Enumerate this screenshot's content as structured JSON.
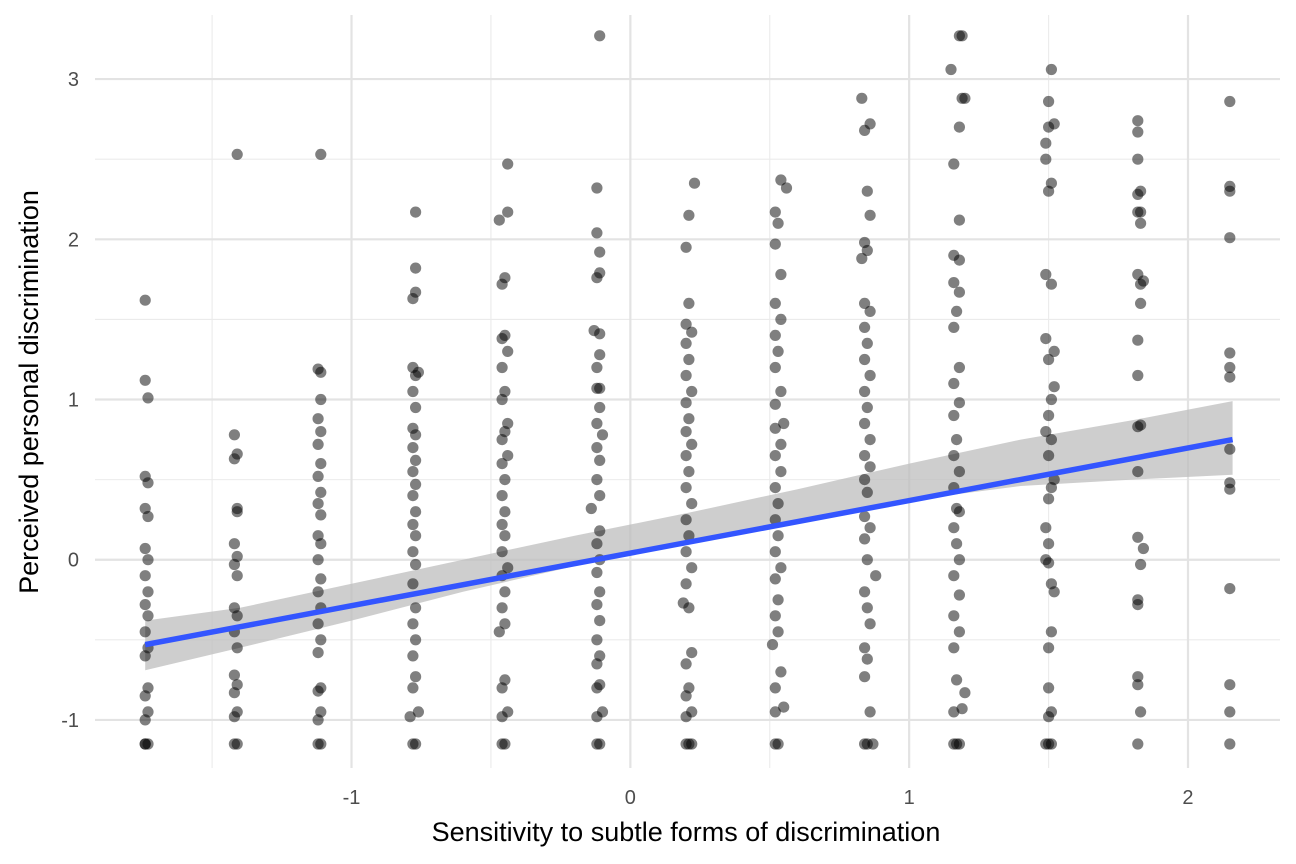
{
  "chart_data": {
    "type": "scatter",
    "title": "",
    "xlabel": "Sensitivity to subtle forms of discrimination",
    "ylabel": "Perceived personal discrimination",
    "xlim": [
      -1.92,
      2.33
    ],
    "ylim": [
      -1.3,
      3.4
    ],
    "x_major_ticks": [
      -1,
      0,
      1,
      2
    ],
    "x_minor_ticks": [
      -1.5,
      -0.5,
      0.5,
      1.5
    ],
    "y_major_ticks": [
      -1,
      0,
      1,
      2,
      3
    ],
    "y_minor_ticks": [
      -0.5,
      0.5,
      1.5,
      2.5
    ],
    "grid": true,
    "legend": "none",
    "point_color": "#000000",
    "point_alpha": 0.5,
    "trend_color": "#3355ff",
    "band_color": "#bebebe",
    "trend_line": {
      "type": "linear",
      "x": [
        -1.74,
        2.16
      ],
      "y": [
        -0.53,
        0.75
      ]
    },
    "confidence_band": {
      "x": [
        -1.74,
        -1.4,
        -1.0,
        -0.6,
        -0.2,
        0.2,
        0.6,
        1.0,
        1.4,
        1.8,
        2.16
      ],
      "upper": [
        -0.38,
        -0.3,
        -0.15,
        0.0,
        0.15,
        0.29,
        0.44,
        0.6,
        0.75,
        0.87,
        0.99
      ],
      "lower": [
        -0.69,
        -0.55,
        -0.38,
        -0.2,
        -0.04,
        0.12,
        0.25,
        0.37,
        0.46,
        0.5,
        0.53
      ]
    },
    "points": [
      [
        -1.74,
        -1.15
      ],
      [
        -1.74,
        -1.15
      ],
      [
        -1.73,
        -1.15
      ],
      [
        -1.74,
        -1.0
      ],
      [
        -1.73,
        -0.95
      ],
      [
        -1.74,
        -0.85
      ],
      [
        -1.73,
        -0.8
      ],
      [
        -1.74,
        -0.6
      ],
      [
        -1.73,
        -0.55
      ],
      [
        -1.74,
        -0.45
      ],
      [
        -1.73,
        -0.35
      ],
      [
        -1.74,
        -0.28
      ],
      [
        -1.73,
        -0.2
      ],
      [
        -1.74,
        -0.1
      ],
      [
        -1.73,
        0.0
      ],
      [
        -1.74,
        0.07
      ],
      [
        -1.73,
        0.27
      ],
      [
        -1.74,
        0.32
      ],
      [
        -1.73,
        0.48
      ],
      [
        -1.74,
        0.52
      ],
      [
        -1.73,
        1.01
      ],
      [
        -1.74,
        1.12
      ],
      [
        -1.74,
        1.62
      ],
      [
        -1.42,
        -1.15
      ],
      [
        -1.41,
        -1.15
      ],
      [
        -1.42,
        -0.98
      ],
      [
        -1.41,
        -0.95
      ],
      [
        -1.42,
        -0.83
      ],
      [
        -1.41,
        -0.78
      ],
      [
        -1.42,
        -0.72
      ],
      [
        -1.41,
        -0.55
      ],
      [
        -1.42,
        -0.45
      ],
      [
        -1.41,
        -0.35
      ],
      [
        -1.42,
        -0.3
      ],
      [
        -1.41,
        -0.1
      ],
      [
        -1.42,
        -0.03
      ],
      [
        -1.41,
        0.02
      ],
      [
        -1.42,
        0.1
      ],
      [
        -1.41,
        0.3
      ],
      [
        -1.41,
        0.32
      ],
      [
        -1.42,
        0.63
      ],
      [
        -1.41,
        0.66
      ],
      [
        -1.42,
        0.78
      ],
      [
        -1.41,
        2.53
      ],
      [
        -1.12,
        -1.15
      ],
      [
        -1.11,
        -1.15
      ],
      [
        -1.12,
        -1.0
      ],
      [
        -1.11,
        -0.95
      ],
      [
        -1.12,
        -0.82
      ],
      [
        -1.11,
        -0.8
      ],
      [
        -1.12,
        -0.58
      ],
      [
        -1.11,
        -0.5
      ],
      [
        -1.12,
        -0.4
      ],
      [
        -1.11,
        -0.3
      ],
      [
        -1.12,
        -0.2
      ],
      [
        -1.11,
        -0.12
      ],
      [
        -1.12,
        0.0
      ],
      [
        -1.11,
        0.1
      ],
      [
        -1.12,
        0.15
      ],
      [
        -1.11,
        0.28
      ],
      [
        -1.12,
        0.35
      ],
      [
        -1.11,
        0.42
      ],
      [
        -1.12,
        0.52
      ],
      [
        -1.11,
        0.6
      ],
      [
        -1.12,
        0.72
      ],
      [
        -1.11,
        0.8
      ],
      [
        -1.12,
        0.88
      ],
      [
        -1.11,
        1.0
      ],
      [
        -1.12,
        1.19
      ],
      [
        -1.11,
        1.17
      ],
      [
        -1.11,
        2.53
      ],
      [
        -0.78,
        -1.15
      ],
      [
        -0.77,
        -1.15
      ],
      [
        -0.79,
        -0.98
      ],
      [
        -0.76,
        -0.95
      ],
      [
        -0.78,
        -0.8
      ],
      [
        -0.77,
        -0.73
      ],
      [
        -0.78,
        -0.6
      ],
      [
        -0.77,
        -0.5
      ],
      [
        -0.78,
        -0.4
      ],
      [
        -0.77,
        -0.3
      ],
      [
        -0.78,
        -0.15
      ],
      [
        -0.77,
        -0.03
      ],
      [
        -0.78,
        0.05
      ],
      [
        -0.77,
        0.15
      ],
      [
        -0.78,
        0.22
      ],
      [
        -0.77,
        0.3
      ],
      [
        -0.78,
        0.4
      ],
      [
        -0.77,
        0.47
      ],
      [
        -0.78,
        0.55
      ],
      [
        -0.77,
        0.62
      ],
      [
        -0.78,
        0.7
      ],
      [
        -0.77,
        0.78
      ],
      [
        -0.78,
        0.82
      ],
      [
        -0.77,
        0.95
      ],
      [
        -0.78,
        1.05
      ],
      [
        -0.77,
        1.15
      ],
      [
        -0.78,
        1.2
      ],
      [
        -0.76,
        1.17
      ],
      [
        -0.78,
        1.63
      ],
      [
        -0.77,
        1.67
      ],
      [
        -0.77,
        1.82
      ],
      [
        -0.77,
        2.17
      ],
      [
        -0.46,
        -1.15
      ],
      [
        -0.45,
        -1.15
      ],
      [
        -0.46,
        -0.98
      ],
      [
        -0.44,
        -0.95
      ],
      [
        -0.46,
        -0.8
      ],
      [
        -0.45,
        -0.75
      ],
      [
        -0.47,
        -0.45
      ],
      [
        -0.45,
        -0.4
      ],
      [
        -0.46,
        -0.3
      ],
      [
        -0.45,
        -0.2
      ],
      [
        -0.46,
        -0.1
      ],
      [
        -0.44,
        -0.05
      ],
      [
        -0.46,
        0.05
      ],
      [
        -0.45,
        0.15
      ],
      [
        -0.46,
        0.22
      ],
      [
        -0.45,
        0.3
      ],
      [
        -0.46,
        0.4
      ],
      [
        -0.45,
        0.5
      ],
      [
        -0.46,
        0.6
      ],
      [
        -0.44,
        0.65
      ],
      [
        -0.46,
        0.75
      ],
      [
        -0.45,
        0.8
      ],
      [
        -0.44,
        0.85
      ],
      [
        -0.46,
        1.0
      ],
      [
        -0.45,
        1.05
      ],
      [
        -0.46,
        1.2
      ],
      [
        -0.44,
        1.3
      ],
      [
        -0.46,
        1.38
      ],
      [
        -0.45,
        1.4
      ],
      [
        -0.46,
        1.72
      ],
      [
        -0.45,
        1.76
      ],
      [
        -0.47,
        2.12
      ],
      [
        -0.44,
        2.17
      ],
      [
        -0.44,
        2.47
      ],
      [
        -0.12,
        -1.15
      ],
      [
        -0.11,
        -1.15
      ],
      [
        -0.12,
        -0.98
      ],
      [
        -0.1,
        -0.95
      ],
      [
        -0.12,
        -0.8
      ],
      [
        -0.11,
        -0.78
      ],
      [
        -0.12,
        -0.65
      ],
      [
        -0.11,
        -0.6
      ],
      [
        -0.12,
        -0.5
      ],
      [
        -0.11,
        -0.38
      ],
      [
        -0.12,
        -0.28
      ],
      [
        -0.11,
        -0.2
      ],
      [
        -0.12,
        -0.08
      ],
      [
        -0.11,
        0.0
      ],
      [
        -0.12,
        0.1
      ],
      [
        -0.11,
        0.18
      ],
      [
        -0.14,
        0.32
      ],
      [
        -0.11,
        0.4
      ],
      [
        -0.12,
        0.5
      ],
      [
        -0.11,
        0.62
      ],
      [
        -0.12,
        0.7
      ],
      [
        -0.1,
        0.78
      ],
      [
        -0.12,
        0.85
      ],
      [
        -0.11,
        0.95
      ],
      [
        -0.12,
        1.07
      ],
      [
        -0.11,
        1.07
      ],
      [
        -0.12,
        1.2
      ],
      [
        -0.11,
        1.28
      ],
      [
        -0.13,
        1.43
      ],
      [
        -0.11,
        1.41
      ],
      [
        -0.12,
        1.76
      ],
      [
        -0.11,
        1.79
      ],
      [
        -0.11,
        1.92
      ],
      [
        -0.12,
        2.04
      ],
      [
        -0.12,
        2.32
      ],
      [
        -0.11,
        3.27
      ],
      [
        0.2,
        -1.15
      ],
      [
        0.21,
        -1.15
      ],
      [
        0.22,
        -1.15
      ],
      [
        0.2,
        -0.98
      ],
      [
        0.22,
        -0.95
      ],
      [
        0.2,
        -0.85
      ],
      [
        0.21,
        -0.8
      ],
      [
        0.2,
        -0.65
      ],
      [
        0.22,
        -0.58
      ],
      [
        0.19,
        -0.27
      ],
      [
        0.21,
        -0.3
      ],
      [
        0.2,
        -0.15
      ],
      [
        0.22,
        -0.05
      ],
      [
        0.2,
        0.05
      ],
      [
        0.21,
        0.15
      ],
      [
        0.2,
        0.25
      ],
      [
        0.22,
        0.35
      ],
      [
        0.2,
        0.45
      ],
      [
        0.21,
        0.55
      ],
      [
        0.2,
        0.65
      ],
      [
        0.22,
        0.72
      ],
      [
        0.2,
        0.8
      ],
      [
        0.21,
        0.88
      ],
      [
        0.2,
        0.98
      ],
      [
        0.22,
        1.05
      ],
      [
        0.2,
        1.15
      ],
      [
        0.21,
        1.25
      ],
      [
        0.2,
        1.35
      ],
      [
        0.22,
        1.42
      ],
      [
        0.2,
        1.47
      ],
      [
        0.21,
        1.6
      ],
      [
        0.2,
        1.95
      ],
      [
        0.21,
        2.15
      ],
      [
        0.23,
        2.35
      ],
      [
        0.52,
        -1.15
      ],
      [
        0.53,
        -1.15
      ],
      [
        0.52,
        -0.95
      ],
      [
        0.55,
        -0.92
      ],
      [
        0.52,
        -0.8
      ],
      [
        0.54,
        -0.7
      ],
      [
        0.51,
        -0.53
      ],
      [
        0.53,
        -0.45
      ],
      [
        0.52,
        -0.35
      ],
      [
        0.53,
        -0.25
      ],
      [
        0.52,
        -0.12
      ],
      [
        0.54,
        -0.05
      ],
      [
        0.52,
        0.05
      ],
      [
        0.53,
        0.15
      ],
      [
        0.52,
        0.25
      ],
      [
        0.53,
        0.35
      ],
      [
        0.52,
        0.45
      ],
      [
        0.54,
        0.55
      ],
      [
        0.52,
        0.65
      ],
      [
        0.54,
        0.72
      ],
      [
        0.52,
        0.82
      ],
      [
        0.55,
        0.85
      ],
      [
        0.52,
        0.97
      ],
      [
        0.54,
        1.05
      ],
      [
        0.52,
        1.2
      ],
      [
        0.53,
        1.3
      ],
      [
        0.52,
        1.4
      ],
      [
        0.54,
        1.5
      ],
      [
        0.52,
        1.6
      ],
      [
        0.54,
        1.78
      ],
      [
        0.52,
        1.97
      ],
      [
        0.53,
        2.1
      ],
      [
        0.52,
        2.17
      ],
      [
        0.56,
        2.32
      ],
      [
        0.54,
        2.37
      ],
      [
        0.84,
        -1.15
      ],
      [
        0.85,
        -1.15
      ],
      [
        0.87,
        -1.15
      ],
      [
        0.86,
        -0.95
      ],
      [
        0.84,
        -0.73
      ],
      [
        0.85,
        -0.62
      ],
      [
        0.84,
        -0.55
      ],
      [
        0.86,
        -0.4
      ],
      [
        0.85,
        -0.3
      ],
      [
        0.84,
        -0.2
      ],
      [
        0.88,
        -0.1
      ],
      [
        0.85,
        0.0
      ],
      [
        0.84,
        0.13
      ],
      [
        0.86,
        0.2
      ],
      [
        0.84,
        0.27
      ],
      [
        0.85,
        0.42
      ],
      [
        0.84,
        0.5
      ],
      [
        0.86,
        0.58
      ],
      [
        0.84,
        0.65
      ],
      [
        0.86,
        0.75
      ],
      [
        0.84,
        0.85
      ],
      [
        0.85,
        0.95
      ],
      [
        0.84,
        1.05
      ],
      [
        0.86,
        1.15
      ],
      [
        0.84,
        1.25
      ],
      [
        0.85,
        1.35
      ],
      [
        0.84,
        1.45
      ],
      [
        0.86,
        1.55
      ],
      [
        0.84,
        1.6
      ],
      [
        0.83,
        1.88
      ],
      [
        0.85,
        1.93
      ],
      [
        0.84,
        1.98
      ],
      [
        0.86,
        2.15
      ],
      [
        0.85,
        2.3
      ],
      [
        0.84,
        2.68
      ],
      [
        0.86,
        2.72
      ],
      [
        0.83,
        2.88
      ],
      [
        1.16,
        -1.15
      ],
      [
        1.17,
        -1.15
      ],
      [
        1.18,
        -1.15
      ],
      [
        1.16,
        -0.95
      ],
      [
        1.19,
        -0.93
      ],
      [
        1.17,
        -0.75
      ],
      [
        1.2,
        -0.83
      ],
      [
        1.16,
        -0.55
      ],
      [
        1.18,
        -0.45
      ],
      [
        1.16,
        -0.35
      ],
      [
        1.18,
        -0.22
      ],
      [
        1.16,
        -0.1
      ],
      [
        1.18,
        0.0
      ],
      [
        1.17,
        0.1
      ],
      [
        1.16,
        0.2
      ],
      [
        1.18,
        0.3
      ],
      [
        1.17,
        0.32
      ],
      [
        1.16,
        0.45
      ],
      [
        1.18,
        0.55
      ],
      [
        1.16,
        0.65
      ],
      [
        1.17,
        0.75
      ],
      [
        1.16,
        0.9
      ],
      [
        1.18,
        0.98
      ],
      [
        1.16,
        1.1
      ],
      [
        1.18,
        1.2
      ],
      [
        1.16,
        1.45
      ],
      [
        1.17,
        1.55
      ],
      [
        1.18,
        1.67
      ],
      [
        1.16,
        1.73
      ],
      [
        1.18,
        1.87
      ],
      [
        1.16,
        1.9
      ],
      [
        1.18,
        2.12
      ],
      [
        1.16,
        2.47
      ],
      [
        1.18,
        2.7
      ],
      [
        1.19,
        2.88
      ],
      [
        1.2,
        2.88
      ],
      [
        1.15,
        3.06
      ],
      [
        1.18,
        3.27
      ],
      [
        1.19,
        3.27
      ],
      [
        1.5,
        -1.15
      ],
      [
        1.51,
        -1.15
      ],
      [
        1.49,
        -1.15
      ],
      [
        1.5,
        -0.98
      ],
      [
        1.51,
        -0.95
      ],
      [
        1.5,
        -0.8
      ],
      [
        1.5,
        -0.55
      ],
      [
        1.51,
        -0.45
      ],
      [
        1.52,
        -0.2
      ],
      [
        1.51,
        -0.15
      ],
      [
        1.5,
        -0.02
      ],
      [
        1.49,
        0.0
      ],
      [
        1.5,
        0.1
      ],
      [
        1.49,
        0.2
      ],
      [
        1.5,
        0.38
      ],
      [
        1.51,
        0.45
      ],
      [
        1.52,
        0.5
      ],
      [
        1.5,
        0.65
      ],
      [
        1.51,
        0.75
      ],
      [
        1.49,
        0.8
      ],
      [
        1.5,
        0.9
      ],
      [
        1.51,
        1.0
      ],
      [
        1.52,
        1.08
      ],
      [
        1.5,
        1.25
      ],
      [
        1.52,
        1.3
      ],
      [
        1.49,
        1.38
      ],
      [
        1.51,
        1.72
      ],
      [
        1.49,
        1.78
      ],
      [
        1.5,
        2.3
      ],
      [
        1.51,
        2.35
      ],
      [
        1.49,
        2.5
      ],
      [
        1.49,
        2.6
      ],
      [
        1.5,
        2.7
      ],
      [
        1.52,
        2.72
      ],
      [
        1.5,
        2.86
      ],
      [
        1.51,
        3.06
      ],
      [
        1.82,
        -1.15
      ],
      [
        1.83,
        -0.95
      ],
      [
        1.82,
        -0.78
      ],
      [
        1.82,
        -0.73
      ],
      [
        1.82,
        -0.28
      ],
      [
        1.82,
        -0.25
      ],
      [
        1.83,
        -0.03
      ],
      [
        1.84,
        0.07
      ],
      [
        1.82,
        0.14
      ],
      [
        1.82,
        0.55
      ],
      [
        1.82,
        0.83
      ],
      [
        1.83,
        0.84
      ],
      [
        1.82,
        1.15
      ],
      [
        1.82,
        1.37
      ],
      [
        1.83,
        1.6
      ],
      [
        1.83,
        1.72
      ],
      [
        1.84,
        1.74
      ],
      [
        1.82,
        1.78
      ],
      [
        1.83,
        2.1
      ],
      [
        1.82,
        2.17
      ],
      [
        1.83,
        2.17
      ],
      [
        1.82,
        2.28
      ],
      [
        1.83,
        2.3
      ],
      [
        1.82,
        2.5
      ],
      [
        1.82,
        2.67
      ],
      [
        1.82,
        2.74
      ],
      [
        2.15,
        -1.15
      ],
      [
        2.15,
        -0.95
      ],
      [
        2.15,
        -0.78
      ],
      [
        2.15,
        -0.18
      ],
      [
        2.15,
        0.44
      ],
      [
        2.15,
        0.48
      ],
      [
        2.15,
        0.69
      ],
      [
        2.15,
        1.14
      ],
      [
        2.15,
        1.2
      ],
      [
        2.15,
        1.29
      ],
      [
        2.15,
        2.01
      ],
      [
        2.15,
        2.3
      ],
      [
        2.15,
        2.33
      ],
      [
        2.15,
        2.86
      ]
    ]
  }
}
